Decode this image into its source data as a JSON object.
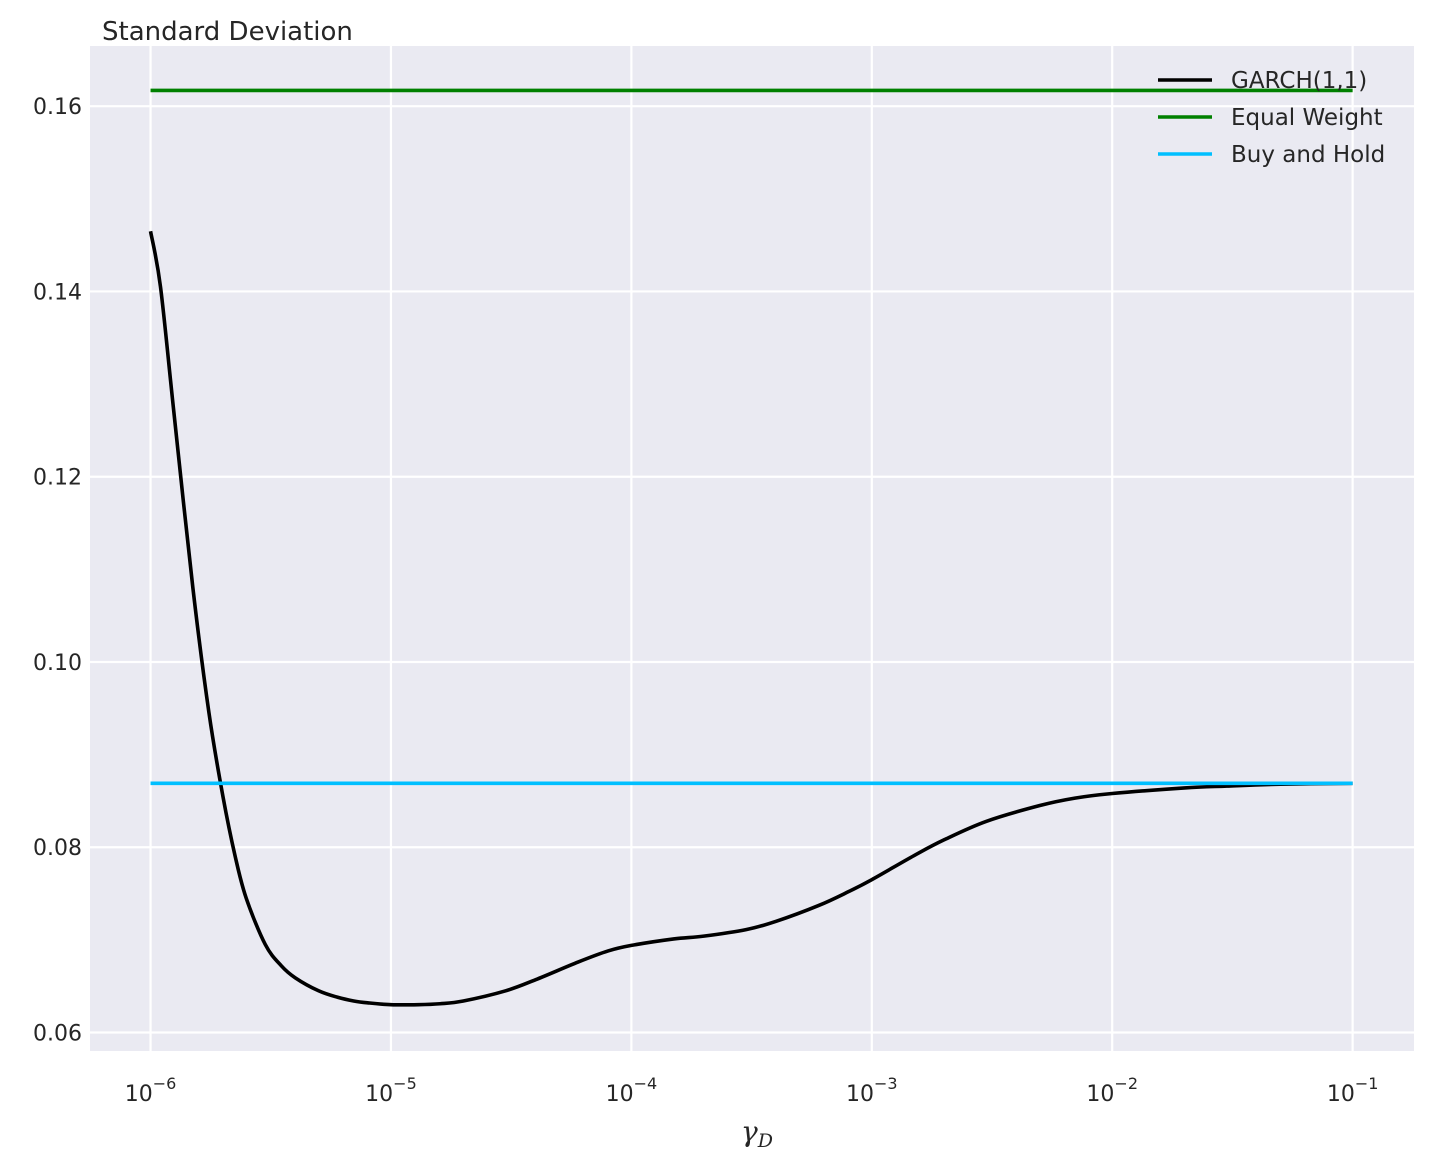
{
  "chart_data": {
    "type": "line",
    "title": "Standard Deviation",
    "xlabel": "γ",
    "xlabel_subscript": "D",
    "ylabel": "",
    "x_scale": "log",
    "xlim": [
      5.6e-07,
      0.18
    ],
    "ylim": [
      0.058,
      0.1665
    ],
    "x_ticks": [
      {
        "value": 1e-06,
        "base": "10",
        "exp": "−6"
      },
      {
        "value": 1e-05,
        "base": "10",
        "exp": "−5"
      },
      {
        "value": 0.0001,
        "base": "10",
        "exp": "−4"
      },
      {
        "value": 0.001,
        "base": "10",
        "exp": "−3"
      },
      {
        "value": 0.01,
        "base": "10",
        "exp": "−2"
      },
      {
        "value": 0.1,
        "base": "10",
        "exp": "−1"
      }
    ],
    "y_ticks": [
      {
        "value": 0.06,
        "label": "0.06"
      },
      {
        "value": 0.08,
        "label": "0.08"
      },
      {
        "value": 0.1,
        "label": "0.10"
      },
      {
        "value": 0.12,
        "label": "0.12"
      },
      {
        "value": 0.14,
        "label": "0.14"
      },
      {
        "value": 0.16,
        "label": "0.16"
      }
    ],
    "grid": true,
    "background": "#eaeaf2",
    "grid_color": "#ffffff",
    "legend_position": "top-right",
    "series": [
      {
        "name": "GARCH(1,1)",
        "color": "#000000",
        "x": [
          1e-06,
          1.1e-06,
          1.25e-06,
          1.5e-06,
          1.75e-06,
          2e-06,
          2.25e-06,
          2.5e-06,
          3e-06,
          3.5e-06,
          4e-06,
          5e-06,
          6e-06,
          7e-06,
          8e-06,
          1e-05,
          1.3e-05,
          1.6e-05,
          2e-05,
          3e-05,
          4e-05,
          6e-05,
          8e-05,
          0.0001,
          0.00015,
          0.0002,
          0.0003,
          0.0004,
          0.0006,
          0.0008,
          0.001,
          0.0015,
          0.002,
          0.003,
          0.005,
          0.007,
          0.01,
          0.02,
          0.03,
          0.05,
          0.1
        ],
        "y": [
          0.1465,
          0.1405,
          0.127,
          0.108,
          0.0945,
          0.0855,
          0.079,
          0.0745,
          0.0695,
          0.0672,
          0.0659,
          0.0645,
          0.0638,
          0.0634,
          0.0632,
          0.063,
          0.063,
          0.0631,
          0.0634,
          0.0645,
          0.0657,
          0.0676,
          0.0688,
          0.0694,
          0.0701,
          0.0704,
          0.0711,
          0.072,
          0.0737,
          0.0752,
          0.0765,
          0.0791,
          0.0808,
          0.0828,
          0.0845,
          0.0853,
          0.0858,
          0.0864,
          0.0866,
          0.0868,
          0.0869
        ]
      },
      {
        "name": "Equal Weight",
        "color": "#008000",
        "x": [
          1e-06,
          0.1
        ],
        "y": [
          0.1617,
          0.1617
        ]
      },
      {
        "name": "Buy and Hold",
        "color": "#00bfff",
        "x": [
          1e-06,
          0.1
        ],
        "y": [
          0.0869,
          0.0869
        ]
      }
    ]
  }
}
